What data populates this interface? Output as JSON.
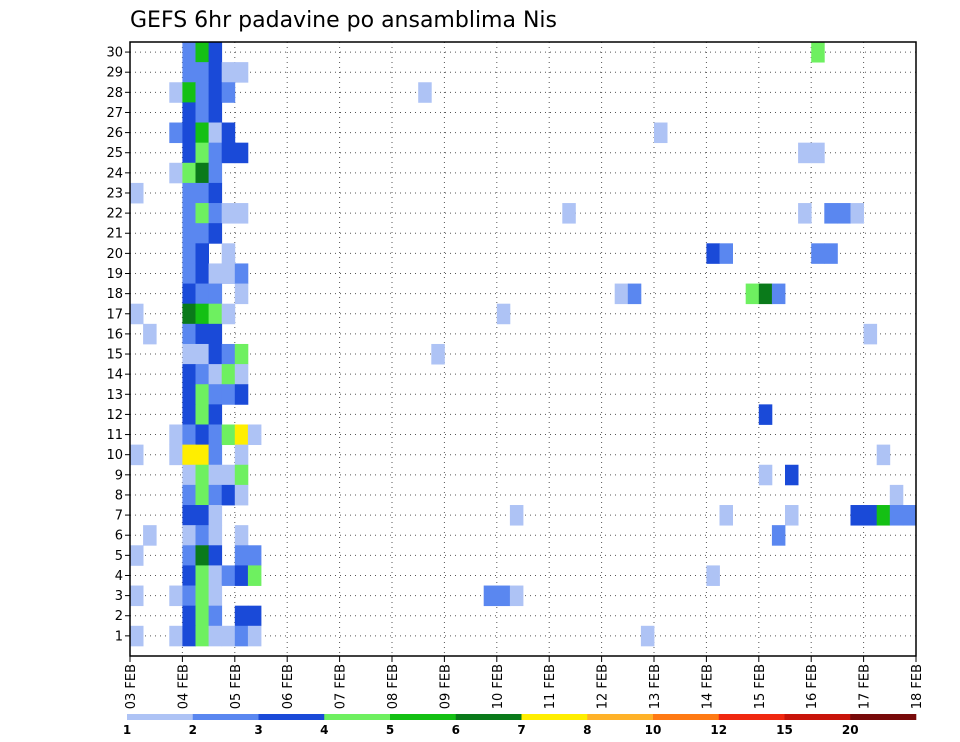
{
  "chart_data": {
    "type": "heatmap",
    "title": "GEFS 6hr padavine po ansamblima Nis",
    "y_tick_labels": [
      "1",
      "2",
      "3",
      "4",
      "5",
      "6",
      "7",
      "8",
      "9",
      "10",
      "11",
      "12",
      "13",
      "14",
      "15",
      "16",
      "17",
      "18",
      "19",
      "20",
      "21",
      "22",
      "23",
      "24",
      "25",
      "26",
      "27",
      "28",
      "29",
      "30"
    ],
    "x_tick_labels": [
      "03 FEB",
      "04 FEB",
      "05 FEB",
      "06 FEB",
      "07 FEB",
      "08 FEB",
      "09 FEB",
      "10 FEB",
      "11 FEB",
      "12 FEB",
      "13 FEB",
      "14 FEB",
      "15 FEB",
      "16 FEB",
      "17 FEB",
      "18 FEB"
    ],
    "x_range": [
      "03 FEB",
      "18 FEB"
    ],
    "y_range": [
      0.5,
      30.5
    ],
    "steps_per_day": 4,
    "grid": true,
    "legend_placement": "bottom",
    "legend_labels": [
      "1",
      "2",
      "3",
      "4",
      "5",
      "6",
      "7",
      "8",
      "10",
      "12",
      "15",
      "20"
    ],
    "legend_colors": [
      "#aec3f5",
      "#5a87f0",
      "#1a4ad8",
      "#6ef060",
      "#14c014",
      "#0a7a1a",
      "#ffee00",
      "#ffb228",
      "#ff7a14",
      "#f02810",
      "#c8140a",
      "#780a0a"
    ],
    "cells": [
      {
        "m": 30,
        "s": [
          [
            4,
            2
          ],
          [
            5,
            5
          ],
          [
            6,
            3
          ],
          [
            52,
            4
          ]
        ]
      },
      {
        "m": 29,
        "s": [
          [
            4,
            2
          ],
          [
            5,
            2
          ],
          [
            6,
            3
          ],
          [
            7,
            1
          ],
          [
            8,
            1
          ]
        ]
      },
      {
        "m": 28,
        "s": [
          [
            3,
            1
          ],
          [
            4,
            5
          ],
          [
            5,
            2
          ],
          [
            6,
            3
          ],
          [
            7,
            2
          ],
          [
            22,
            1
          ]
        ]
      },
      {
        "m": 27,
        "s": [
          [
            4,
            3
          ],
          [
            5,
            2
          ],
          [
            6,
            3
          ]
        ]
      },
      {
        "m": 26,
        "s": [
          [
            3,
            2
          ],
          [
            4,
            3
          ],
          [
            5,
            5
          ],
          [
            6,
            1
          ],
          [
            7,
            3
          ],
          [
            40,
            1
          ]
        ]
      },
      {
        "m": 25,
        "s": [
          [
            4,
            3
          ],
          [
            5,
            4
          ],
          [
            6,
            2
          ],
          [
            7,
            3
          ],
          [
            8,
            3
          ],
          [
            51,
            1
          ],
          [
            52,
            1
          ]
        ]
      },
      {
        "m": 24,
        "s": [
          [
            3,
            1
          ],
          [
            4,
            4
          ],
          [
            5,
            6
          ],
          [
            6,
            2
          ]
        ]
      },
      {
        "m": 23,
        "s": [
          [
            0,
            1
          ],
          [
            4,
            2
          ],
          [
            5,
            2
          ],
          [
            6,
            3
          ]
        ]
      },
      {
        "m": 22,
        "s": [
          [
            4,
            2
          ],
          [
            5,
            4
          ],
          [
            6,
            2
          ],
          [
            7,
            1
          ],
          [
            8,
            1
          ],
          [
            33,
            1
          ],
          [
            51,
            1
          ],
          [
            53,
            2
          ],
          [
            54,
            2
          ],
          [
            55,
            1
          ]
        ]
      },
      {
        "m": 21,
        "s": [
          [
            4,
            2
          ],
          [
            5,
            2
          ],
          [
            6,
            3
          ]
        ]
      },
      {
        "m": 20,
        "s": [
          [
            4,
            2
          ],
          [
            5,
            3
          ],
          [
            7,
            1
          ],
          [
            44,
            3
          ],
          [
            45,
            2
          ],
          [
            52,
            2
          ],
          [
            53,
            2
          ]
        ]
      },
      {
        "m": 19,
        "s": [
          [
            4,
            2
          ],
          [
            5,
            3
          ],
          [
            6,
            1
          ],
          [
            7,
            1
          ],
          [
            8,
            2
          ]
        ]
      },
      {
        "m": 18,
        "s": [
          [
            4,
            3
          ],
          [
            5,
            2
          ],
          [
            6,
            2
          ],
          [
            8,
            1
          ],
          [
            37,
            1
          ],
          [
            38,
            2
          ],
          [
            47,
            4
          ],
          [
            48,
            6
          ],
          [
            49,
            2
          ]
        ]
      },
      {
        "m": 17,
        "s": [
          [
            0,
            1
          ],
          [
            4,
            6
          ],
          [
            5,
            5
          ],
          [
            6,
            4
          ],
          [
            7,
            1
          ],
          [
            28,
            1
          ]
        ]
      },
      {
        "m": 16,
        "s": [
          [
            1,
            1
          ],
          [
            4,
            2
          ],
          [
            5,
            3
          ],
          [
            6,
            3
          ],
          [
            56,
            1
          ]
        ]
      },
      {
        "m": 15,
        "s": [
          [
            4,
            1
          ],
          [
            5,
            1
          ],
          [
            6,
            3
          ],
          [
            7,
            2
          ],
          [
            8,
            4
          ],
          [
            23,
            1
          ]
        ]
      },
      {
        "m": 14,
        "s": [
          [
            4,
            3
          ],
          [
            5,
            2
          ],
          [
            6,
            1
          ],
          [
            7,
            4
          ],
          [
            8,
            1
          ]
        ]
      },
      {
        "m": 13,
        "s": [
          [
            4,
            3
          ],
          [
            5,
            4
          ],
          [
            6,
            2
          ],
          [
            7,
            2
          ],
          [
            8,
            3
          ]
        ]
      },
      {
        "m": 12,
        "s": [
          [
            4,
            3
          ],
          [
            5,
            4
          ],
          [
            6,
            3
          ],
          [
            48,
            3
          ]
        ]
      },
      {
        "m": 11,
        "s": [
          [
            3,
            1
          ],
          [
            4,
            2
          ],
          [
            5,
            3
          ],
          [
            6,
            2
          ],
          [
            7,
            4
          ],
          [
            8,
            7
          ],
          [
            9,
            1
          ]
        ]
      },
      {
        "m": 10,
        "s": [
          [
            0,
            1
          ],
          [
            3,
            1
          ],
          [
            4,
            7
          ],
          [
            5,
            7
          ],
          [
            6,
            2
          ],
          [
            8,
            1
          ],
          [
            57,
            1
          ]
        ]
      },
      {
        "m": 9,
        "s": [
          [
            4,
            1
          ],
          [
            5,
            4
          ],
          [
            6,
            1
          ],
          [
            7,
            1
          ],
          [
            8,
            4
          ],
          [
            48,
            1
          ],
          [
            50,
            3
          ]
        ]
      },
      {
        "m": 8,
        "s": [
          [
            4,
            2
          ],
          [
            5,
            4
          ],
          [
            6,
            2
          ],
          [
            7,
            3
          ],
          [
            8,
            1
          ],
          [
            58,
            1
          ]
        ]
      },
      {
        "m": 7,
        "s": [
          [
            4,
            3
          ],
          [
            5,
            3
          ],
          [
            6,
            1
          ],
          [
            29,
            1
          ],
          [
            45,
            1
          ],
          [
            50,
            1
          ],
          [
            55,
            3
          ],
          [
            56,
            3
          ],
          [
            57,
            5
          ],
          [
            58,
            2
          ],
          [
            59,
            2
          ]
        ]
      },
      {
        "m": 6,
        "s": [
          [
            1,
            1
          ],
          [
            4,
            1
          ],
          [
            5,
            2
          ],
          [
            6,
            1
          ],
          [
            8,
            1
          ],
          [
            49,
            2
          ]
        ]
      },
      {
        "m": 5,
        "s": [
          [
            0,
            1
          ],
          [
            4,
            2
          ],
          [
            5,
            6
          ],
          [
            6,
            3
          ],
          [
            8,
            2
          ],
          [
            9,
            2
          ]
        ]
      },
      {
        "m": 4,
        "s": [
          [
            4,
            3
          ],
          [
            5,
            4
          ],
          [
            6,
            1
          ],
          [
            7,
            2
          ],
          [
            8,
            3
          ],
          [
            9,
            4
          ],
          [
            44,
            1
          ]
        ]
      },
      {
        "m": 3,
        "s": [
          [
            0,
            1
          ],
          [
            3,
            1
          ],
          [
            4,
            2
          ],
          [
            5,
            4
          ],
          [
            6,
            1
          ],
          [
            27,
            2
          ],
          [
            28,
            2
          ],
          [
            29,
            1
          ]
        ]
      },
      {
        "m": 2,
        "s": [
          [
            4,
            3
          ],
          [
            5,
            4
          ],
          [
            6,
            2
          ],
          [
            8,
            3
          ],
          [
            9,
            3
          ]
        ]
      },
      {
        "m": 1,
        "s": [
          [
            0,
            1
          ],
          [
            3,
            1
          ],
          [
            4,
            3
          ],
          [
            5,
            4
          ],
          [
            6,
            1
          ],
          [
            7,
            1
          ],
          [
            8,
            2
          ],
          [
            9,
            1
          ],
          [
            39,
            1
          ]
        ]
      }
    ]
  }
}
